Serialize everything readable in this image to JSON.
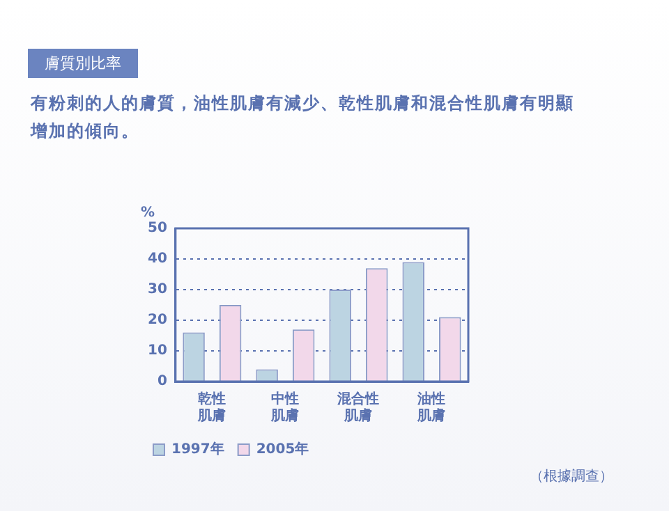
{
  "chart_data": {
    "type": "bar",
    "title": "膚質別比率",
    "subtitle": "有粉刺的人的膚質，油性肌膚有減少、乾性肌膚和混合性肌膚有明顯增加的傾向。",
    "ylabel": "%",
    "categories": [
      "乾性肌膚",
      "中性肌膚",
      "混合性肌膚",
      "油性肌膚"
    ],
    "series": [
      {
        "name": "1997年",
        "color": "#bcd4e2",
        "values": [
          16,
          4,
          30,
          39
        ]
      },
      {
        "name": "2005年",
        "color": "#f2d8ea",
        "values": [
          25,
          17,
          37,
          21
        ]
      }
    ],
    "ylim": [
      0,
      50
    ],
    "yticks": [
      0,
      10,
      20,
      30,
      40,
      50
    ],
    "grid": "y",
    "legend": "bottom left",
    "annotations": [
      "（根據調查）"
    ]
  }
}
